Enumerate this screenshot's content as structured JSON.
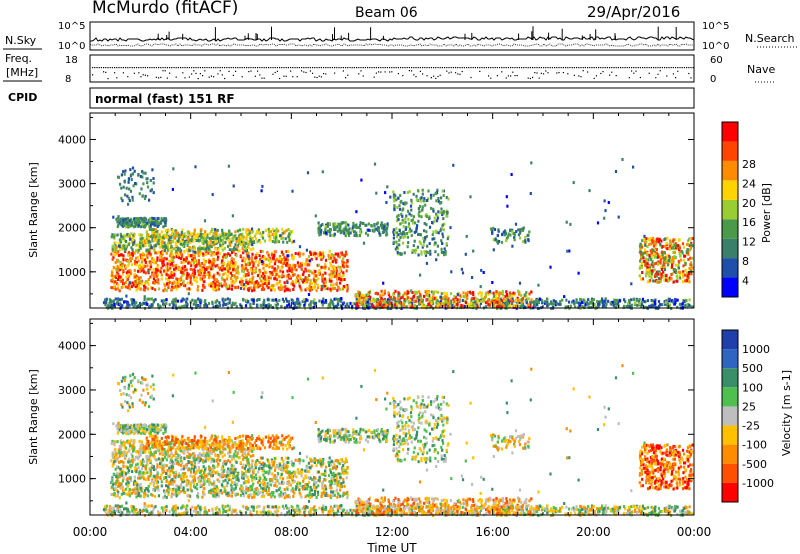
{
  "header": {
    "station": "McMurdo (fitACF)",
    "beam": "Beam 06",
    "date": "29/Apr/2016"
  },
  "noise_panel": {
    "left_label": "N.Sky",
    "right_label": "N.Search",
    "left_ticks": [
      "10^5",
      "10^0"
    ],
    "right_ticks": [
      "10^5",
      "10^0"
    ]
  },
  "freq_panel": {
    "left_label_1": "Freq.",
    "left_label_2": "[MHz]",
    "right_label": "Nave",
    "left_ticks": [
      "18",
      "8"
    ],
    "right_ticks": [
      "60",
      "0"
    ]
  },
  "cpid": {
    "label": "CPID",
    "value": "normal (fast) 151 RF"
  },
  "colors": {
    "power": [
      "#0000ff",
      "#1f4faa",
      "#3a7f6a",
      "#4a9a4a",
      "#9acd32",
      "#ffd200",
      "#ff8c00",
      "#ff4500",
      "#ff0000"
    ],
    "velocity": [
      "#1f3faa",
      "#2f64c0",
      "#3a8f6a",
      "#4fbf4f",
      "#bebebe",
      "#ffc000",
      "#ff8c00",
      "#ff5000",
      "#ff0000"
    ]
  },
  "chart_data": [
    {
      "type": "heatmap",
      "title": "",
      "xlabel": "Time UT",
      "ylabel": "Slant Range [km]",
      "x_ticks": [
        "00:00",
        "04:00",
        "08:00",
        "12:00",
        "16:00",
        "20:00",
        "00:00"
      ],
      "xlim": [
        0,
        24
      ],
      "ylim": [
        180,
        4600
      ],
      "y_ticks": [
        "1000",
        "2000",
        "3000",
        "4000"
      ],
      "y_tick_values": [
        1000,
        2000,
        3000,
        4000
      ],
      "colorbar": {
        "label": "Power [dB]",
        "ticks": [
          "4",
          "8",
          "12",
          "16",
          "20",
          "24",
          "28"
        ],
        "range": [
          0,
          30
        ]
      }
    },
    {
      "type": "heatmap",
      "title": "",
      "xlabel": "Time UT",
      "ylabel": "Slant Range [km]",
      "x_ticks": [
        "00:00",
        "04:00",
        "08:00",
        "12:00",
        "16:00",
        "20:00",
        "00:00"
      ],
      "xlim": [
        0,
        24
      ],
      "ylim": [
        180,
        4600
      ],
      "y_ticks": [
        "1000",
        "2000",
        "3000",
        "4000"
      ],
      "y_tick_values": [
        1000,
        2000,
        3000,
        4000
      ],
      "colorbar": {
        "label": "Velocity [m s-1]",
        "ticks": [
          "1000",
          "500",
          "100",
          "25",
          "-25",
          "-100",
          "-500",
          "-1000"
        ]
      }
    }
  ]
}
